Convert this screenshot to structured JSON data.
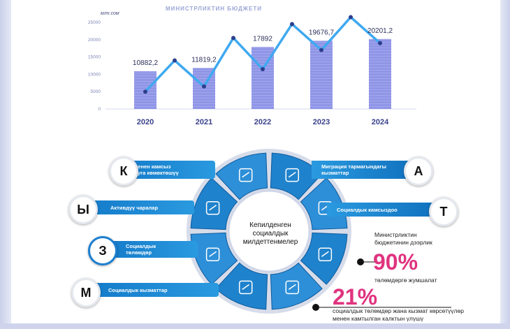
{
  "chart_data": {
    "type": "bar",
    "title": "МИНИСТРЛИКТИН БЮДЖЕТИ",
    "unit": "млн.сом",
    "categories": [
      "2020",
      "2021",
      "2022",
      "2023",
      "2024"
    ],
    "values": [
      10882.2,
      11819.2,
      17892,
      19676.7,
      20201.2
    ],
    "value_labels": [
      "10882,2",
      "11819,2",
      "17892",
      "19676,7",
      "20201,2"
    ],
    "ylim": [
      0,
      25000
    ],
    "yticks": [
      "0",
      "5000",
      "10000",
      "15000",
      "20000",
      "25000"
    ],
    "bar_color": "#8f95e6",
    "line_color": "#3fa9f0",
    "grid": false,
    "decorative_line_values": [
      5000,
      14000,
      6500,
      20500,
      11500,
      24500,
      17000,
      26500,
      19000
    ]
  },
  "wheel": {
    "center_lines": [
      "Кепилденген",
      "социалдык",
      "милдеттенмелер"
    ],
    "segment_color": "#1f82cc",
    "icons": [
      "briefcase-people-icon",
      "globe-icon",
      "coin-stack-icon",
      "presentation-board-icon",
      "pie-chart-icon",
      "elderly-care-icon",
      "hand-card-icon",
      "growth-chart-icon"
    ]
  },
  "bands": {
    "left": [
      {
        "letter": "К",
        "lines": [
          "Иш менен камсыз",
          "кылууга көмөктөшүү"
        ]
      },
      {
        "letter": "Ы",
        "lines": [
          "Активдүү чаралар"
        ]
      },
      {
        "letter": "З",
        "lines": [
          "Социалдык",
          "төлөмдөр"
        ]
      },
      {
        "letter": "М",
        "lines": [
          "Социалдык кызматтар"
        ]
      }
    ],
    "right": [
      {
        "letter": "А",
        "lines": [
          "Миграция тармагындагы",
          "кызматтар"
        ]
      },
      {
        "letter": "Т",
        "lines": [
          "Социалдык камсыздоо"
        ]
      }
    ]
  },
  "stats": {
    "budget_caption_1": "Министрликтин",
    "budget_caption_2": "бюджетинин дээрлик",
    "percent_1": "90%",
    "percent_1_caption": "төлөмдөргө жумшалат",
    "percent_2": "21%",
    "percent_2_caption_1": "социалдык төлөмдөр жана кызмат көрсөтүүлөр",
    "percent_2_caption_2": "менен камтылган калктын үлүшү",
    "accent_color": "#e0337f"
  }
}
